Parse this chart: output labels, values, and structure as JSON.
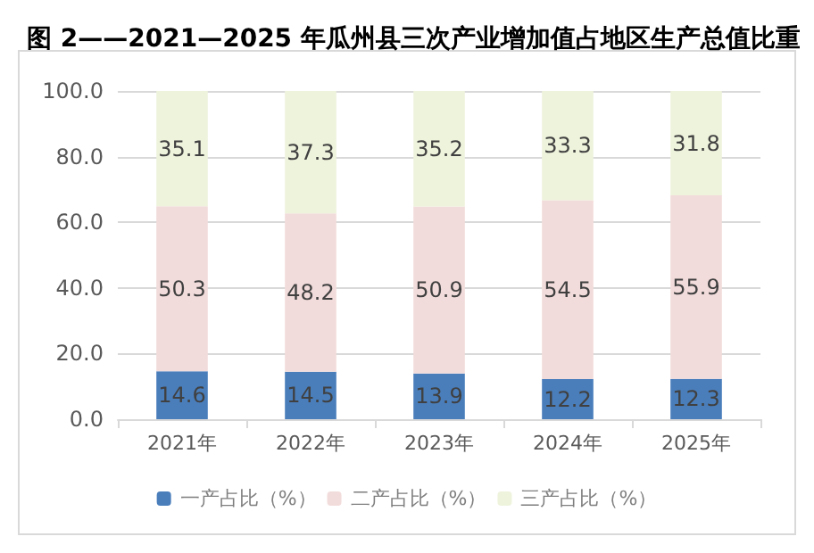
{
  "chart_data": {
    "type": "bar",
    "title": "图 2——2021—2025 年瓜州县三次产业增加值占地区生产总值比重",
    "categories": [
      "2021年",
      "2022年",
      "2023年",
      "2024年",
      "2025年"
    ],
    "stacked": true,
    "data_labels": true,
    "grid": "y",
    "legend": "bottom",
    "ylim": [
      0,
      100
    ],
    "yticks": [
      {
        "value": 0,
        "label": "0.0"
      },
      {
        "value": 20,
        "label": "20.0"
      },
      {
        "value": 40,
        "label": "40.0"
      },
      {
        "value": 60,
        "label": "60.0"
      },
      {
        "value": 80,
        "label": "80.0"
      },
      {
        "value": 100,
        "label": "100.0"
      }
    ],
    "series": [
      {
        "name": "一产占比（%）",
        "color": "#4a7ebb",
        "values": [
          14.6,
          14.5,
          13.9,
          12.2,
          12.3
        ]
      },
      {
        "name": "二产占比（%）",
        "color": "#f2dcdb",
        "values": [
          50.3,
          48.2,
          50.9,
          54.5,
          55.9
        ]
      },
      {
        "name": "三产占比（%）",
        "color": "#eef3dc",
        "values": [
          35.1,
          37.3,
          35.2,
          33.3,
          31.8
        ]
      }
    ]
  }
}
